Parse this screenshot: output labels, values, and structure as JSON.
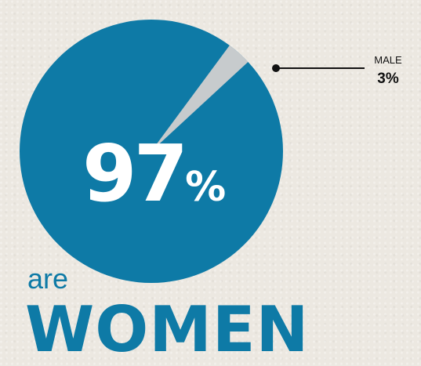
{
  "chart_data": {
    "type": "pie",
    "slices": [
      {
        "label": "WOMEN",
        "value": 97,
        "color": "#0e7aa6"
      },
      {
        "label": "MALE",
        "value": 3,
        "color": "#c7cbcd"
      }
    ]
  },
  "headline": {
    "percent_number": "97",
    "percent_symbol": "%",
    "are_text": "are",
    "women_text": "WOMEN"
  },
  "callout": {
    "label": "MALE",
    "value": "3%"
  }
}
